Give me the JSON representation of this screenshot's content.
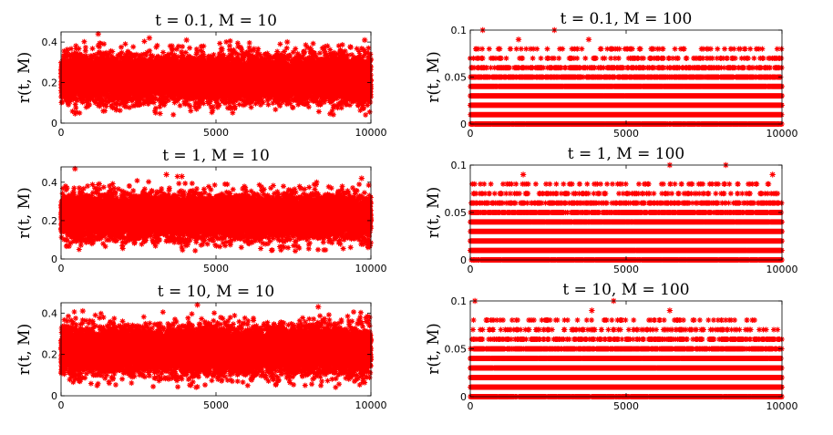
{
  "chart_data": [
    {
      "type": "scatter",
      "title": "t = 0.1, M = 10",
      "ylabel": "r(t, M)",
      "xlabel": "",
      "xlim": [
        0,
        10000
      ],
      "ylim": [
        0,
        0.45
      ],
      "xticks": [
        0,
        5000,
        10000
      ],
      "xtick_labels": [
        "0",
        "5000",
        "10000"
      ],
      "yticks": [
        0,
        0.2,
        0.4
      ],
      "ytick_labels": [
        "0",
        "0.2",
        "0.4"
      ],
      "marker": "*",
      "color": "#ff0000",
      "series": [
        {
          "name": "r(t, M)",
          "n_samples": 10000,
          "distribution": "continuous",
          "mean": 0.22,
          "spread": 0.055,
          "min": 0.04,
          "max": 0.44,
          "outliers": [
            [
              1200,
              0.44
            ],
            [
              9800,
              0.41
            ],
            [
              2850,
              0.42
            ],
            [
              4050,
              0.41
            ],
            [
              7300,
              0.4
            ]
          ]
        }
      ]
    },
    {
      "type": "scatter",
      "title": "t = 0.1, M = 100",
      "ylabel": "r(t, M)",
      "xlabel": "",
      "xlim": [
        0,
        10000
      ],
      "ylim": [
        0,
        0.1
      ],
      "xticks": [
        0,
        5000,
        10000
      ],
      "xtick_labels": [
        "0",
        "5000",
        "10000"
      ],
      "yticks": [
        0,
        0.05,
        0.1
      ],
      "ytick_labels": [
        "0",
        "0.05",
        "0.1"
      ],
      "marker": "*",
      "color": "#ff0000",
      "series": [
        {
          "name": "r(t, M)",
          "n_samples": 10000,
          "distribution": "discrete",
          "levels": [
            0,
            0.01,
            0.02,
            0.03,
            0.04,
            0.05,
            0.06,
            0.07,
            0.08,
            0.09,
            0.1
          ],
          "level_weights": [
            0.12,
            0.2,
            0.23,
            0.2,
            0.13,
            0.07,
            0.03,
            0.012,
            0.004,
            0.0015,
            0.0003
          ],
          "outliers": [
            [
              400,
              0.1
            ],
            [
              2700,
              0.1
            ],
            [
              1550,
              0.09
            ],
            [
              3800,
              0.09
            ]
          ]
        }
      ]
    },
    {
      "type": "scatter",
      "title": "t = 1, M = 10",
      "ylabel": "r(t, M)",
      "xlabel": "",
      "xlim": [
        0,
        10000
      ],
      "ylim": [
        0,
        0.48
      ],
      "xticks": [
        0,
        5000,
        10000
      ],
      "xtick_labels": [
        "0",
        "5000",
        "10000"
      ],
      "yticks": [
        0,
        0.2,
        0.4
      ],
      "ytick_labels": [
        "0",
        "0.2",
        "0.4"
      ],
      "marker": "*",
      "color": "#ff0000",
      "series": [
        {
          "name": "r(t, M)",
          "n_samples": 10000,
          "distribution": "continuous",
          "mean": 0.22,
          "spread": 0.055,
          "min": 0.04,
          "max": 0.47,
          "outliers": [
            [
              450,
              0.47
            ],
            [
              3400,
              0.44
            ],
            [
              3900,
              0.43
            ],
            [
              9700,
              0.42
            ]
          ]
        }
      ]
    },
    {
      "type": "scatter",
      "title": "t = 1, M = 100",
      "ylabel": "r(t, M)",
      "xlabel": "",
      "xlim": [
        0,
        10000
      ],
      "ylim": [
        0,
        0.1
      ],
      "xticks": [
        0,
        5000,
        10000
      ],
      "xtick_labels": [
        "0",
        "5000",
        "10000"
      ],
      "yticks": [
        0,
        0.05,
        0.1
      ],
      "ytick_labels": [
        "0",
        "0.05",
        "0.1"
      ],
      "marker": "*",
      "color": "#ff0000",
      "series": [
        {
          "name": "r(t, M)",
          "n_samples": 10000,
          "distribution": "discrete",
          "levels": [
            0,
            0.01,
            0.02,
            0.03,
            0.04,
            0.05,
            0.06,
            0.07,
            0.08,
            0.09,
            0.1
          ],
          "level_weights": [
            0.12,
            0.2,
            0.23,
            0.2,
            0.13,
            0.07,
            0.03,
            0.012,
            0.004,
            0.0015,
            0.0003
          ],
          "outliers": [
            [
              6400,
              0.1
            ],
            [
              8200,
              0.1
            ],
            [
              9700,
              0.09
            ],
            [
              1700,
              0.09
            ]
          ]
        }
      ]
    },
    {
      "type": "scatter",
      "title": "t = 10, M = 10",
      "ylabel": "r(t, M)",
      "xlabel": "",
      "xlim": [
        0,
        10000
      ],
      "ylim": [
        0,
        0.45
      ],
      "xticks": [
        0,
        5000,
        10000
      ],
      "xtick_labels": [
        "0",
        "5000",
        "10000"
      ],
      "yticks": [
        0,
        0.2,
        0.4
      ],
      "ytick_labels": [
        "0",
        "0.2",
        "0.4"
      ],
      "marker": "*",
      "color": "#ff0000",
      "series": [
        {
          "name": "r(t, M)",
          "n_samples": 10000,
          "distribution": "continuous",
          "mean": 0.22,
          "spread": 0.055,
          "min": 0.04,
          "max": 0.44,
          "outliers": [
            [
              4400,
              0.44
            ],
            [
              8300,
              0.43
            ],
            [
              700,
              0.41
            ]
          ]
        }
      ]
    },
    {
      "type": "scatter",
      "title": "t = 10, M = 100",
      "ylabel": "r(t, M)",
      "xlabel": "",
      "xlim": [
        0,
        10000
      ],
      "ylim": [
        0,
        0.1
      ],
      "xticks": [
        0,
        5000,
        10000
      ],
      "xtick_labels": [
        "0",
        "5000",
        "10000"
      ],
      "yticks": [
        0,
        0.05,
        0.1
      ],
      "ytick_labels": [
        "0",
        "0.05",
        "0.1"
      ],
      "marker": "*",
      "color": "#ff0000",
      "series": [
        {
          "name": "r(t, M)",
          "n_samples": 10000,
          "distribution": "discrete",
          "levels": [
            0,
            0.01,
            0.02,
            0.03,
            0.04,
            0.05,
            0.06,
            0.07,
            0.08,
            0.09,
            0.1
          ],
          "level_weights": [
            0.12,
            0.2,
            0.23,
            0.2,
            0.13,
            0.07,
            0.03,
            0.012,
            0.004,
            0.0015,
            0.0003
          ],
          "outliers": [
            [
              150,
              0.1
            ],
            [
              4600,
              0.1
            ],
            [
              3900,
              0.09
            ],
            [
              6400,
              0.09
            ]
          ]
        }
      ]
    }
  ]
}
